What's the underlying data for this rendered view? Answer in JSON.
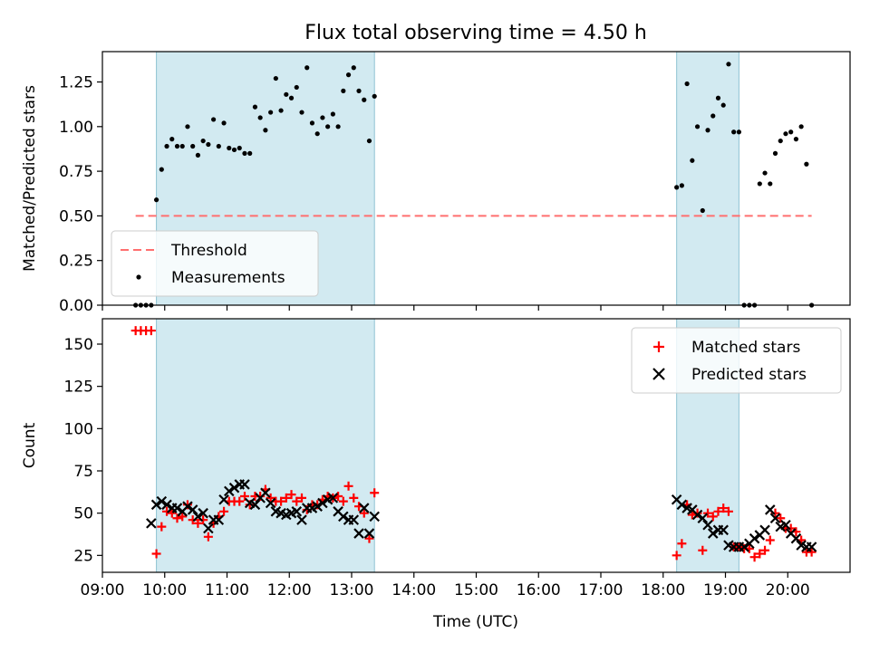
{
  "chart_data": {
    "title": "Flux total observing time = 4.50 h",
    "xlabel": "Time (UTC)",
    "x_unit": "hours UTC",
    "xlim": [
      "09:00",
      "21:00"
    ],
    "x_ticks": [
      "09:00",
      "10:00",
      "11:00",
      "12:00",
      "13:00",
      "14:00",
      "15:00",
      "16:00",
      "17:00",
      "18:00",
      "19:00",
      "20:00"
    ],
    "shaded_intervals": [
      [
        "09:52",
        "13:22"
      ],
      [
        "18:13",
        "19:13"
      ]
    ],
    "shade_color": "#add8e6",
    "panels": [
      {
        "type": "scatter",
        "ylabel": "Matched/Predicted stars",
        "ylim": [
          0,
          1.42
        ],
        "y_ticks": [
          "0.00",
          "0.25",
          "0.50",
          "0.75",
          "1.00",
          "1.25"
        ],
        "legend_position": "lower-left",
        "legend": [
          {
            "label": "Threshold",
            "kind": "dashed-line",
            "color": "#ff6f6f"
          },
          {
            "label": "Measurements",
            "kind": "dot",
            "color": "#000000"
          }
        ],
        "threshold": {
          "y": 0.5,
          "x_range": [
            "09:32",
            "20:23"
          ]
        },
        "series": [
          {
            "name": "Measurements",
            "color": "#000000",
            "x": [
              "09:32",
              "09:37",
              "09:42",
              "09:47",
              "09:52",
              "09:57",
              "10:02",
              "10:07",
              "10:12",
              "10:17",
              "10:22",
              "10:27",
              "10:32",
              "10:37",
              "10:42",
              "10:47",
              "10:52",
              "10:57",
              "11:02",
              "11:07",
              "11:12",
              "11:17",
              "11:22",
              "11:27",
              "11:32",
              "11:37",
              "11:42",
              "11:47",
              "11:52",
              "11:57",
              "12:02",
              "12:07",
              "12:12",
              "12:17",
              "12:22",
              "12:27",
              "12:32",
              "12:37",
              "12:42",
              "12:47",
              "12:52",
              "12:57",
              "13:02",
              "13:07",
              "13:12",
              "13:17",
              "13:22",
              "18:13",
              "18:18",
              "18:23",
              "18:28",
              "18:33",
              "18:38",
              "18:43",
              "18:48",
              "18:53",
              "18:58",
              "19:03",
              "19:08",
              "19:13",
              "19:18",
              "19:23",
              "19:28",
              "19:33",
              "19:38",
              "19:43",
              "19:48",
              "19:53",
              "19:58",
              "20:03",
              "20:08",
              "20:13",
              "20:18",
              "20:23"
            ],
            "y": [
              0,
              0,
              0,
              0,
              0.59,
              0.76,
              0.89,
              0.93,
              0.89,
              0.89,
              1.0,
              0.89,
              0.84,
              0.92,
              0.9,
              1.04,
              0.89,
              1.02,
              0.88,
              0.87,
              0.88,
              0.85,
              0.85,
              1.11,
              1.05,
              0.98,
              1.08,
              1.27,
              1.09,
              1.18,
              1.16,
              1.22,
              1.08,
              1.33,
              1.02,
              0.96,
              1.05,
              1.0,
              1.07,
              1.0,
              1.2,
              1.29,
              1.33,
              1.2,
              1.15,
              0.92,
              1.17,
              0.66,
              0.67,
              1.24,
              0.81,
              1.0,
              0.53,
              0.98,
              1.06,
              1.16,
              1.12,
              1.35,
              0.97,
              0.97,
              0,
              0,
              0,
              0.68,
              0.74,
              0.68,
              0.85,
              0.92,
              0.96,
              0.97,
              0.93,
              1.0,
              0.79,
              0
            ]
          }
        ]
      },
      {
        "type": "scatter",
        "ylabel": "Count",
        "ylim": [
          15,
          165
        ],
        "y_ticks": [
          "25",
          "50",
          "75",
          "100",
          "125",
          "150"
        ],
        "legend_position": "upper-right",
        "legend": [
          {
            "label": "Matched stars",
            "kind": "plus",
            "color": "#ff0000"
          },
          {
            "label": "Predicted stars",
            "kind": "x",
            "color": "#000000"
          }
        ],
        "series": [
          {
            "name": "Matched stars",
            "marker": "plus",
            "color": "#ff0000",
            "x": [
              "09:32",
              "09:37",
              "09:42",
              "09:47",
              "09:52",
              "09:57",
              "10:02",
              "10:07",
              "10:12",
              "10:17",
              "10:22",
              "10:27",
              "10:32",
              "10:37",
              "10:42",
              "10:47",
              "10:52",
              "10:57",
              "11:02",
              "11:07",
              "11:12",
              "11:17",
              "11:22",
              "11:27",
              "11:32",
              "11:37",
              "11:42",
              "11:47",
              "11:52",
              "11:57",
              "12:02",
              "12:07",
              "12:12",
              "12:17",
              "12:22",
              "12:27",
              "12:32",
              "12:37",
              "12:42",
              "12:47",
              "12:52",
              "12:57",
              "13:02",
              "13:07",
              "13:12",
              "13:17",
              "13:22",
              "18:13",
              "18:18",
              "18:23",
              "18:28",
              "18:33",
              "18:38",
              "18:43",
              "18:48",
              "18:53",
              "18:58",
              "19:03",
              "19:08",
              "19:13",
              "19:18",
              "19:23",
              "19:28",
              "19:33",
              "19:38",
              "19:43",
              "19:48",
              "19:53",
              "19:58",
              "20:03",
              "20:08",
              "20:13",
              "20:18",
              "20:23"
            ],
            "y": [
              158,
              158,
              158,
              158,
              26,
              42,
              51,
              50,
              47,
              48,
              55,
              46,
              44,
              46,
              36,
              44,
              48,
              51,
              57,
              57,
              57,
              60,
              55,
              60,
              60,
              64,
              59,
              57,
              57,
              59,
              61,
              57,
              59,
              52,
              55,
              55,
              58,
              60,
              59,
              60,
              57,
              66,
              59,
              54,
              50,
              35,
              62,
              25,
              32,
              55,
              49,
              50,
              28,
              50,
              48,
              51,
              53,
              51,
              30,
              30,
              29,
              29,
              24,
              26,
              28,
              34,
              50,
              47,
              41,
              41,
              39,
              34,
              27,
              27
            ]
          },
          {
            "name": "Predicted stars",
            "marker": "x",
            "color": "#000000",
            "x": [
              "09:47",
              "09:52",
              "09:57",
              "10:02",
              "10:07",
              "10:12",
              "10:17",
              "10:22",
              "10:27",
              "10:32",
              "10:37",
              "10:42",
              "10:47",
              "10:52",
              "10:57",
              "11:02",
              "11:07",
              "11:12",
              "11:17",
              "11:22",
              "11:27",
              "11:32",
              "11:37",
              "11:42",
              "11:47",
              "11:52",
              "11:57",
              "12:02",
              "12:07",
              "12:12",
              "12:17",
              "12:22",
              "12:27",
              "12:32",
              "12:37",
              "12:42",
              "12:47",
              "12:52",
              "12:57",
              "13:02",
              "13:07",
              "13:12",
              "13:17",
              "13:22",
              "18:13",
              "18:18",
              "18:23",
              "18:28",
              "18:33",
              "18:38",
              "18:43",
              "18:48",
              "18:53",
              "18:58",
              "19:03",
              "19:08",
              "19:13",
              "19:18",
              "19:23",
              "19:28",
              "19:33",
              "19:38",
              "19:43",
              "19:48",
              "19:53",
              "19:58",
              "20:03",
              "20:08",
              "20:13",
              "20:18",
              "20:23"
            ],
            "y": [
              44,
              55,
              57,
              55,
              53,
              53,
              51,
              54,
              52,
              48,
              50,
              41,
              46,
              46,
              58,
              63,
              65,
              67,
              67,
              56,
              55,
              59,
              62,
              56,
              51,
              50,
              49,
              50,
              51,
              46,
              53,
              53,
              54,
              56,
              58,
              59,
              51,
              48,
              46,
              46,
              38,
              53,
              38,
              48,
              58,
              55,
              53,
              52,
              49,
              47,
              43,
              38,
              40,
              40,
              31,
              30,
              30,
              30,
              32,
              35,
              37,
              40,
              52,
              47,
              42,
              43,
              38,
              35,
              31,
              30,
              30
            ]
          }
        ]
      }
    ]
  }
}
